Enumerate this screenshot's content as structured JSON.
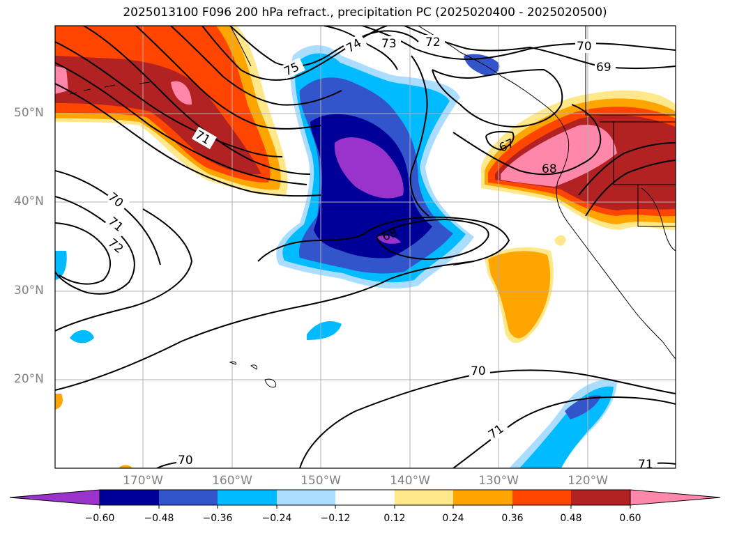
{
  "title": "2025013100 F096 200 hPa refract., precipitation PC (2025020400 - 2025020500)",
  "map": {
    "lat_labels": [
      "50°N",
      "40°N",
      "30°N",
      "20°N"
    ],
    "lon_labels": [
      "170°W",
      "160°W",
      "150°W",
      "140°W",
      "130°W",
      "120°W"
    ],
    "contour_labels": [
      "75",
      "74",
      "73",
      "72",
      "70",
      "69",
      "71",
      "67",
      "68",
      "70",
      "71",
      "72",
      "68",
      "70",
      "71",
      "70",
      "71"
    ]
  },
  "colorbar": {
    "tick_labels": [
      "−0.60",
      "−0.48",
      "−0.36",
      "−0.24",
      "−0.12",
      "0.12",
      "0.24",
      "0.36",
      "0.48",
      "0.60"
    ],
    "colors": [
      "#9933cc",
      "#000099",
      "#3355cc",
      "#00bbff",
      "#aaddff",
      "#ffffff",
      "#ffe88a",
      "#ffa500",
      "#ff4500",
      "#b22222",
      "#ff88aa"
    ]
  }
}
